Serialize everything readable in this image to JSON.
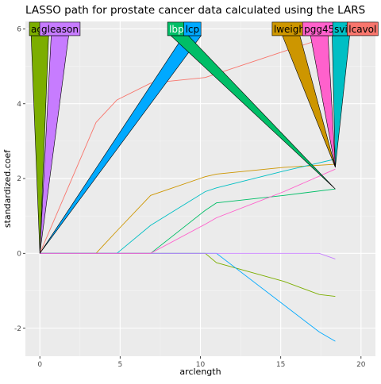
{
  "chart_data": {
    "type": "line",
    "title": "LASSO path for prostate cancer data calculated using the LARS",
    "xlabel": "arclength",
    "ylabel": "standardized.coef",
    "xlim": [
      -0.9,
      20.9
    ],
    "ylim": [
      -2.75,
      6.2
    ],
    "x_ticks": [
      0,
      5,
      10,
      15,
      20
    ],
    "y_ticks": [
      -2,
      0,
      2,
      4,
      6
    ],
    "grid": true,
    "series": [
      {
        "name": "lcavol",
        "color": "#F8766D",
        "x": [
          0,
          3.5,
          4.8,
          6.9,
          10.3,
          15.2,
          18.4
        ],
        "y": [
          0,
          3.5,
          4.1,
          4.55,
          4.7,
          5.4,
          5.85
        ]
      },
      {
        "name": "lweight",
        "color": "#CD9600",
        "x": [
          0,
          3.5,
          4.8,
          6.9,
          10.3,
          11.0,
          15.2,
          18.4
        ],
        "y": [
          0,
          0,
          0.6,
          1.55,
          2.05,
          2.12,
          2.3,
          2.38
        ]
      },
      {
        "name": "age",
        "color": "#7CAE00",
        "x": [
          0,
          10.3,
          11.0,
          15.2,
          17.4,
          18.4
        ],
        "y": [
          0,
          0,
          -0.25,
          -0.75,
          -1.1,
          -1.15
        ]
      },
      {
        "name": "lbph",
        "color": "#00BE67",
        "x": [
          0,
          6.9,
          10.3,
          11.0,
          15.2,
          18.4
        ],
        "y": [
          0,
          0,
          1.15,
          1.35,
          1.55,
          1.72
        ]
      },
      {
        "name": "svi",
        "color": "#00BFC4",
        "x": [
          0,
          4.8,
          6.9,
          10.3,
          11.0,
          15.2,
          18.4
        ],
        "y": [
          0,
          0,
          0.75,
          1.65,
          1.75,
          2.2,
          2.52
        ]
      },
      {
        "name": "lcp",
        "color": "#00A9FF",
        "x": [
          0,
          11.0,
          17.4,
          18.4
        ],
        "y": [
          0,
          0,
          -2.1,
          -2.35
        ]
      },
      {
        "name": "gleason",
        "color": "#C77CFF",
        "x": [
          0,
          17.4,
          18.4
        ],
        "y": [
          0,
          0,
          -0.15
        ]
      },
      {
        "name": "pgg45",
        "color": "#FF61CC",
        "x": [
          0,
          6.9,
          10.3,
          11.0,
          15.2,
          18.4
        ],
        "y": [
          0,
          0,
          0.78,
          0.95,
          1.65,
          2.25
        ]
      }
    ],
    "label_callouts": [
      {
        "name": "age",
        "fill": "#7CAE00",
        "text_color": "#000000",
        "base": [
          0,
          6.0
        ],
        "tip": [
          0,
          0
        ]
      },
      {
        "name": "gleason",
        "fill": "#C77CFF",
        "text_color": "#000000",
        "base": [
          1.25,
          6.0
        ],
        "tip": [
          0,
          0
        ]
      },
      {
        "name": "lbph",
        "fill": "#00BE67",
        "text_color": "#ffffff",
        "base": [
          8.7,
          6.0
        ],
        "tip": [
          18.4,
          1.72
        ]
      },
      {
        "name": "lcp",
        "fill": "#00A9FF",
        "text_color": "#000000",
        "base": [
          9.5,
          6.0
        ],
        "tip": [
          0,
          0
        ]
      },
      {
        "name": "lweight",
        "fill": "#CD9600",
        "text_color": "#000000",
        "base": [
          15.65,
          6.0
        ],
        "tip": [
          18.4,
          2.3
        ]
      },
      {
        "name": "pgg45",
        "fill": "#FF61CC",
        "text_color": "#000000",
        "base": [
          17.4,
          6.0
        ],
        "tip": [
          18.4,
          2.3
        ]
      },
      {
        "name": "svi",
        "fill": "#00BFC4",
        "text_color": "#000000",
        "base": [
          18.75,
          6.0
        ],
        "tip": [
          18.4,
          2.3
        ]
      },
      {
        "name": "lcavol",
        "fill": "#F8766D",
        "text_color": "#000000",
        "base": [
          20.1,
          6.0
        ],
        "tip": [
          20.1,
          6.0
        ]
      }
    ]
  }
}
